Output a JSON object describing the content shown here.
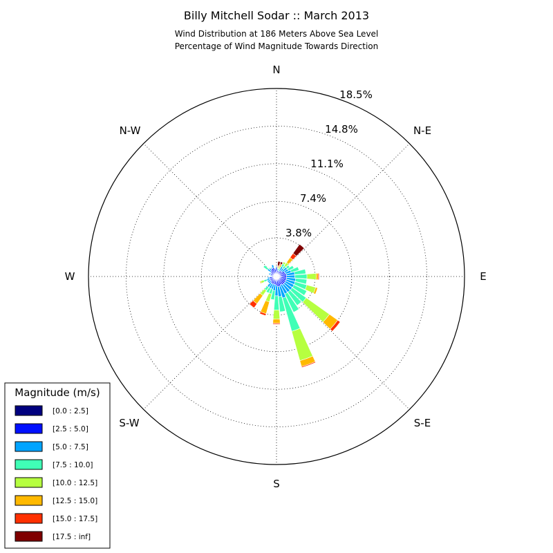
{
  "chart_data": {
    "type": "windrose",
    "title": "Billy Mitchell Sodar :: March 2013",
    "subtitle_lines": [
      "Wind Distribution at 186 Meters Above Sea Level",
      "Percentage of Wind Magnitude Towards Direction"
    ],
    "direction_labels": [
      "N",
      "N-E",
      "E",
      "S-E",
      "S",
      "S-W",
      "W",
      "N-W"
    ],
    "radial_tick_labels": [
      "3.8%",
      "7.4%",
      "11.1%",
      "14.8%",
      "18.5%"
    ],
    "radial_ticks": [
      3.8,
      7.4,
      11.1,
      14.8,
      18.5
    ],
    "radial_max": 18.5,
    "grid": true,
    "legend_position": "bottom-left",
    "legend": {
      "title": "Magnitude (m/s)",
      "bins": [
        {
          "label": "[0.0 : 2.5]",
          "color": "#00007f"
        },
        {
          "label": "[2.5 : 5.0]",
          "color": "#0010ff"
        },
        {
          "label": "[5.0 : 7.5]",
          "color": "#00a4ff"
        },
        {
          "label": "[7.5 : 10.0]",
          "color": "#40ffb6"
        },
        {
          "label": "[10.0 : 12.5]",
          "color": "#b6ff40"
        },
        {
          "label": "[12.5 : 15.0]",
          "color": "#ffb900"
        },
        {
          "label": "[15.0 : 17.5]",
          "color": "#ff3000"
        },
        {
          "label": "[17.5 : inf]",
          "color": "#7f0000"
        }
      ]
    },
    "sector_width_deg": 10,
    "sectors": [
      {
        "dir": 0,
        "values": [
          0.3,
          0.6,
          0.1,
          0,
          0,
          0,
          0,
          0
        ]
      },
      {
        "dir": 10,
        "values": [
          0.2,
          0.4,
          0.1,
          0.1,
          0.1,
          0.1,
          0.1,
          0.4
        ]
      },
      {
        "dir": 20,
        "values": [
          0.2,
          0.3,
          0.1,
          0.2,
          0.2,
          0.2,
          0.1,
          0.2
        ]
      },
      {
        "dir": 30,
        "values": [
          0.2,
          0.4,
          0.5,
          0.3,
          0.2,
          0,
          0,
          0
        ]
      },
      {
        "dir": 40,
        "values": [
          0.2,
          0.5,
          0.3,
          0.3,
          0.4,
          0.6,
          0.5,
          1.1
        ]
      },
      {
        "dir": 50,
        "values": [
          0.2,
          0.5,
          0.6,
          0.3,
          0,
          0,
          0,
          0
        ]
      },
      {
        "dir": 60,
        "values": [
          0.3,
          0.6,
          0.4,
          0.6,
          0,
          0,
          0,
          0
        ]
      },
      {
        "dir": 70,
        "values": [
          0.3,
          0.6,
          0.6,
          0.8,
          0,
          0,
          0,
          0
        ]
      },
      {
        "dir": 80,
        "values": [
          0.3,
          0.7,
          0.8,
          1.1,
          0,
          0,
          0,
          0
        ]
      },
      {
        "dir": 90,
        "values": [
          0.3,
          0.7,
          0.8,
          1.2,
          0.9,
          0.2,
          0.1,
          0
        ]
      },
      {
        "dir": 100,
        "values": [
          0.3,
          0.7,
          0.9,
          1.1,
          0,
          0,
          0,
          0
        ]
      },
      {
        "dir": 110,
        "values": [
          0.3,
          0.7,
          0.9,
          1.2,
          0.9,
          0.2,
          0,
          0
        ]
      },
      {
        "dir": 120,
        "values": [
          0.3,
          0.7,
          0.9,
          1.4,
          0,
          0,
          0,
          0
        ]
      },
      {
        "dir": 130,
        "values": [
          0.3,
          0.7,
          0.9,
          1.7,
          2.8,
          1.0,
          0.3,
          0
        ]
      },
      {
        "dir": 140,
        "values": [
          0.3,
          0.7,
          0.9,
          1.6,
          0,
          0,
          0,
          0
        ]
      },
      {
        "dir": 150,
        "values": [
          0.3,
          0.6,
          1.0,
          2.0,
          0,
          0,
          0,
          0
        ]
      },
      {
        "dir": 160,
        "values": [
          0.3,
          0.7,
          1.2,
          3.4,
          3.0,
          0.6,
          0.1,
          0
        ]
      },
      {
        "dir": 170,
        "values": [
          0.3,
          0.7,
          1.0,
          1.5,
          0,
          0,
          0,
          0
        ]
      },
      {
        "dir": 180,
        "values": [
          0.3,
          0.6,
          1.0,
          1.4,
          0.9,
          0.4,
          0.1,
          0
        ]
      },
      {
        "dir": 190,
        "values": [
          0.3,
          0.5,
          0.6,
          0.9,
          0,
          0,
          0,
          0
        ]
      },
      {
        "dir": 200,
        "values": [
          0.3,
          0.5,
          0.5,
          0.5,
          0.8,
          1.2,
          0.2,
          0
        ]
      },
      {
        "dir": 210,
        "values": [
          0.3,
          0.5,
          0.5,
          0.5,
          0,
          0,
          0,
          0
        ]
      },
      {
        "dir": 220,
        "values": [
          0.3,
          0.5,
          0.5,
          0.4,
          0.6,
          1.0,
          0.5,
          0
        ]
      },
      {
        "dir": 230,
        "values": [
          0.3,
          0.4,
          0.3,
          0,
          0,
          0,
          0,
          0
        ]
      },
      {
        "dir": 240,
        "values": [
          0.3,
          0.4,
          0.3,
          0,
          0,
          0,
          0,
          0
        ]
      },
      {
        "dir": 250,
        "values": [
          0.3,
          0.4,
          0.3,
          0.3,
          0.3,
          0.1,
          0,
          0
        ]
      },
      {
        "dir": 260,
        "values": [
          0.3,
          0.4,
          0.2,
          0,
          0,
          0,
          0,
          0
        ]
      },
      {
        "dir": 270,
        "values": [
          0.3,
          0.2,
          0.1,
          0,
          0,
          0,
          0,
          0
        ]
      },
      {
        "dir": 280,
        "values": [
          0.3,
          0.2,
          0.1,
          0,
          0,
          0,
          0,
          0
        ]
      },
      {
        "dir": 290,
        "values": [
          0.3,
          0.3,
          0.2,
          0,
          0,
          0,
          0,
          0
        ]
      },
      {
        "dir": 300,
        "values": [
          0.3,
          0.3,
          0.1,
          0,
          0,
          0,
          0,
          0
        ]
      },
      {
        "dir": 310,
        "values": [
          0.3,
          0.4,
          0.4,
          0.5,
          0,
          0,
          0,
          0
        ]
      },
      {
        "dir": 320,
        "values": [
          0.3,
          0.5,
          0.2,
          0.1,
          0,
          0,
          0,
          0
        ]
      },
      {
        "dir": 330,
        "values": [
          0.3,
          0.6,
          0.1,
          0,
          0,
          0,
          0,
          0
        ]
      },
      {
        "dir": 340,
        "values": [
          0.3,
          0.6,
          0.3,
          0,
          0,
          0,
          0,
          0
        ]
      },
      {
        "dir": 350,
        "values": [
          0.3,
          0.4,
          0.1,
          0,
          0,
          0,
          0,
          0
        ]
      }
    ]
  }
}
